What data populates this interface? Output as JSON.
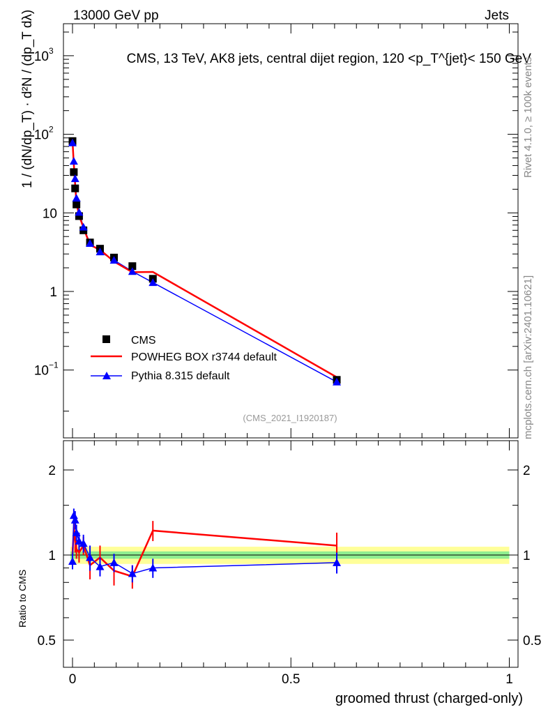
{
  "header": {
    "energy": "13000 GeV pp",
    "process": "Jets"
  },
  "side": {
    "rivet": "Rivet 4.1.0, ≥ 100k events",
    "mcplots": "mcplots.cern.ch [arXiv:2401.10621]"
  },
  "analysis_tag": "(CMS_2021_I1920187)",
  "chart_data": [
    {
      "type": "line",
      "title": "CMS, 13 TeV, AK8 jets, central dijet region, 120 <p_T^{jet}< 150 GeV",
      "ylabel": "1 / (dN/dp_T) · d²N / (dp_T dλ)",
      "yscale": "log",
      "ylim": [
        0.02,
        2000
      ],
      "yticks": [
        {
          "v": 0.1,
          "label": "10",
          "exp": "−1"
        },
        {
          "v": 1,
          "label": "1",
          "exp": ""
        },
        {
          "v": 10,
          "label": "10",
          "exp": ""
        },
        {
          "v": 100,
          "label": "10",
          "exp": "2"
        },
        {
          "v": 1000,
          "label": "10",
          "exp": "3"
        }
      ],
      "x": [
        0,
        0.003,
        0.006,
        0.009,
        0.015,
        0.025,
        0.04,
        0.063,
        0.095,
        0.137,
        0.184,
        0.605
      ],
      "series": [
        {
          "name": "CMS",
          "color": "#000000",
          "marker": "square",
          "values": [
            82,
            33,
            20.5,
            12.8,
            9.1,
            6.0,
            4.2,
            3.5,
            2.7,
            2.1,
            1.45,
            0.075
          ]
        },
        {
          "name": "POWHEG BOX r3744 default",
          "color": "#ff0000",
          "marker": "none",
          "values": [
            82,
            41,
            23,
            13.4,
            9.3,
            6.5,
            3.9,
            3.4,
            2.4,
            1.76,
            1.77,
            0.081
          ]
        },
        {
          "name": "Pythia 8.315 default",
          "color": "#0000ff",
          "marker": "triangle",
          "values": [
            78,
            45.5,
            27.3,
            15.4,
            10.2,
            6.6,
            4.1,
            3.2,
            2.5,
            1.8,
            1.3,
            0.0705
          ]
        }
      ],
      "legend": "bottom-left"
    },
    {
      "type": "line",
      "ylabel": "Ratio to CMS",
      "xlabel": "groomed thrust (charged-only)",
      "yscale": "log",
      "ylim": [
        0.4,
        2.4
      ],
      "xlim": [
        -0.02,
        1.02
      ],
      "xticks": [
        {
          "v": 0,
          "label": "0"
        },
        {
          "v": 0.5,
          "label": "0.5"
        },
        {
          "v": 1,
          "label": "1"
        }
      ],
      "yticks": [
        {
          "v": 0.5,
          "label": "0.5"
        },
        {
          "v": 1,
          "label": "1"
        },
        {
          "v": 2,
          "label": "2"
        }
      ],
      "series": [
        {
          "name": "POWHEG BOX r3744 default",
          "color": "#ff0000",
          "values": [
            1.0,
            1.25,
            1.12,
            1.05,
            1.02,
            1.08,
            0.92,
            0.98,
            0.88,
            0.84,
            1.22,
            1.08
          ],
          "err": [
            0.06,
            0.12,
            0.1,
            0.08,
            0.08,
            0.08,
            0.1,
            0.1,
            0.1,
            0.08,
            0.1,
            0.12
          ]
        },
        {
          "name": "Pythia 8.315 default",
          "color": "#0000ff",
          "values": [
            0.95,
            1.38,
            1.33,
            1.2,
            1.12,
            1.1,
            0.98,
            0.91,
            0.94,
            0.86,
            0.9,
            0.94
          ],
          "err": [
            0.06,
            0.08,
            0.1,
            0.08,
            0.08,
            0.08,
            0.1,
            0.07,
            0.07,
            0.06,
            0.07,
            0.08
          ]
        }
      ],
      "band_stat": 0.03,
      "band_total": 0.07,
      "band_colors": [
        "#90ee90",
        "#ffff99"
      ]
    }
  ]
}
